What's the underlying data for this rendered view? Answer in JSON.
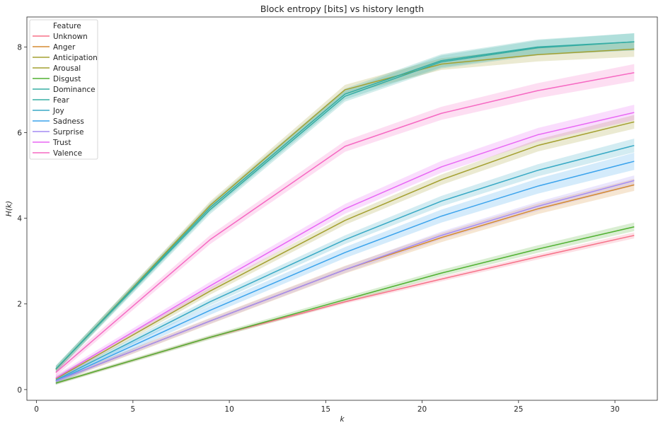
{
  "chart_data": {
    "type": "line",
    "title": "Block entropy [bits] vs history length",
    "xlabel": "k",
    "ylabel": "H(k)",
    "xlim": [
      -0.5,
      32.2
    ],
    "ylim": [
      -0.25,
      8.7
    ],
    "x_ticks": [
      0,
      5,
      10,
      15,
      20,
      25,
      30
    ],
    "y_ticks": [
      0,
      2,
      4,
      6,
      8
    ],
    "x": [
      1,
      9,
      16,
      21,
      26,
      31
    ],
    "grid": false,
    "legend": {
      "title": "Feature",
      "placement": "top-left"
    },
    "series": [
      {
        "name": "Unknown",
        "color": "#f77189",
        "values": [
          0.15,
          1.22,
          2.05,
          2.58,
          3.1,
          3.6
        ],
        "band": 0.07
      },
      {
        "name": "Anger",
        "color": "#d58c32",
        "values": [
          0.2,
          1.6,
          2.8,
          3.55,
          4.22,
          4.78
        ],
        "band": 0.14
      },
      {
        "name": "Anticipation",
        "color": "#a4a031",
        "values": [
          0.47,
          4.3,
          7.0,
          7.6,
          7.82,
          7.95
        ],
        "band": 0.18
      },
      {
        "name": "Arousal",
        "color": "#a4a031",
        "values": [
          0.25,
          2.3,
          3.95,
          4.9,
          5.7,
          6.25
        ],
        "band": 0.16
      },
      {
        "name": "Disgust",
        "color": "#50b131",
        "values": [
          0.15,
          1.22,
          2.1,
          2.72,
          3.28,
          3.8
        ],
        "band": 0.1
      },
      {
        "name": "Dominance",
        "color": "#36ada4",
        "values": [
          0.48,
          4.25,
          6.9,
          7.68,
          8.0,
          8.12
        ],
        "band": 0.2
      },
      {
        "name": "Fear",
        "color": "#36ada4",
        "values": [
          0.48,
          4.2,
          6.85,
          7.65,
          7.98,
          8.12
        ],
        "band": 0.2
      },
      {
        "name": "Joy",
        "color": "#38a9c5",
        "values": [
          0.22,
          2.05,
          3.5,
          4.4,
          5.12,
          5.7
        ],
        "band": 0.16
      },
      {
        "name": "Sadness",
        "color": "#3ba3ec",
        "values": [
          0.2,
          1.85,
          3.2,
          4.05,
          4.75,
          5.33
        ],
        "band": 0.2
      },
      {
        "name": "Surprise",
        "color": "#a48cf4",
        "values": [
          0.2,
          1.6,
          2.8,
          3.6,
          4.28,
          4.88
        ],
        "band": 0.12
      },
      {
        "name": "Trust",
        "color": "#e866f4",
        "values": [
          0.27,
          2.42,
          4.22,
          5.2,
          5.95,
          6.47
        ],
        "band": 0.18
      },
      {
        "name": "Valence",
        "color": "#f668c2",
        "values": [
          0.4,
          3.5,
          5.68,
          6.45,
          6.98,
          7.4
        ],
        "band": 0.2
      }
    ]
  }
}
